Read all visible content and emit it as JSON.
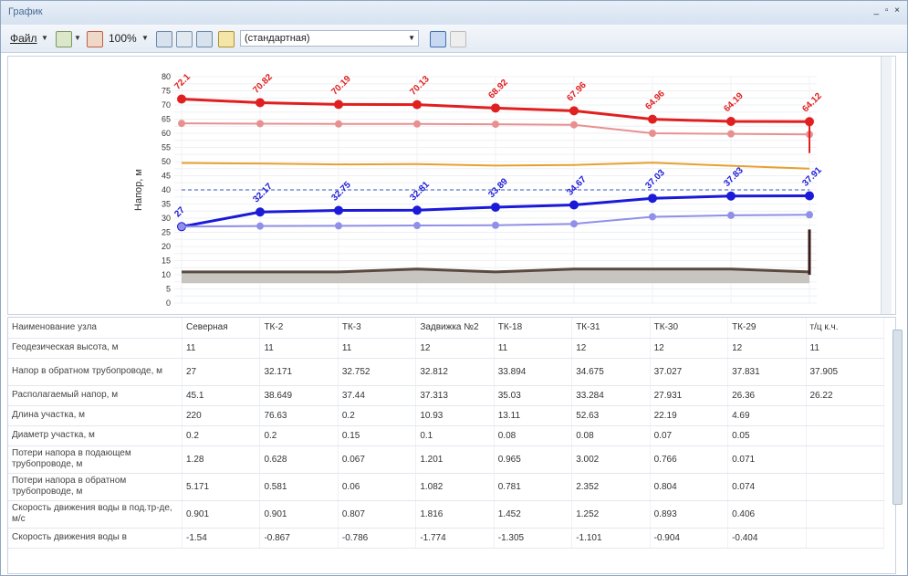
{
  "window": {
    "title": "График",
    "controls": "_ ▫ ×"
  },
  "toolbar": {
    "file_menu": "Файл",
    "zoom": "100%",
    "scheme": "(стандартная)"
  },
  "colors": {
    "red": "#e02020",
    "light_red": "#e89090",
    "blue": "#1a1ad8",
    "light_blue": "#9090e8",
    "orange": "#e8a030",
    "ground": "#5a4a40"
  },
  "chart_data": {
    "type": "line",
    "ylabel": "Напор, м",
    "ylim": [
      0,
      80
    ],
    "yticks": [
      0,
      5,
      10,
      15,
      20,
      25,
      30,
      35,
      40,
      45,
      50,
      55,
      60,
      65,
      70,
      75,
      80
    ],
    "categories": [
      "Северная",
      "ТК-2",
      "ТК-3",
      "Задвижка №2",
      "ТК-18",
      "ТК-31",
      "ТК-30",
      "ТК-29",
      "т/ц к.ч."
    ],
    "series": [
      {
        "name": "",
        "color": "#e02020",
        "values": [
          72.1,
          70.82,
          70.19,
          70.13,
          68.92,
          67.96,
          64.96,
          64.19,
          64.12
        ],
        "labels": [
          "72.1",
          "70.82",
          "70.19",
          "70.13",
          "68.92",
          "67.96",
          "64.96",
          "64.19",
          "64.12"
        ]
      },
      {
        "name": "",
        "color": "#e89090",
        "values": [
          63.5,
          63.4,
          63.3,
          63.3,
          63.2,
          63.0,
          60.0,
          59.8,
          59.6
        ]
      },
      {
        "name": "",
        "color": "#e8a030",
        "values": [
          49.5,
          49.3,
          49.0,
          49.1,
          48.6,
          48.8,
          49.6,
          48.5,
          47.5
        ]
      },
      {
        "name": "",
        "color": "#1a1ad8",
        "values": [
          27,
          32.17,
          32.75,
          32.81,
          33.89,
          34.67,
          37.03,
          37.83,
          37.91
        ],
        "labels": [
          "27",
          "32.17",
          "32.75",
          "32.81",
          "33.89",
          "34.67",
          "37.03",
          "37.83",
          "37.91"
        ]
      },
      {
        "name": "",
        "color": "#9090e8",
        "values": [
          27,
          27.2,
          27.3,
          27.4,
          27.5,
          28.0,
          30.5,
          31.0,
          31.2
        ]
      },
      {
        "name": "",
        "color": "#5a4a40",
        "values": [
          11,
          11,
          11,
          12,
          11,
          12,
          12,
          12,
          11
        ]
      }
    ],
    "reference_line": 40,
    "grid": true
  },
  "table": {
    "rows": [
      {
        "label": "Наименование узла",
        "cells": [
          "Северная",
          "ТК-2",
          "ТК-3",
          "Задвижка №2",
          "ТК-18",
          "ТК-31",
          "ТК-30",
          "ТК-29",
          "т/ц к.ч."
        ]
      },
      {
        "label": "Геодезическая высота, м",
        "cells": [
          "11",
          "11",
          "11",
          "12",
          "11",
          "12",
          "12",
          "12",
          "11"
        ]
      },
      {
        "label": "Напор в обратном трубопроводе, м",
        "cells": [
          "27",
          "32.171",
          "32.752",
          "32.812",
          "33.894",
          "34.675",
          "37.027",
          "37.831",
          "37.905"
        ]
      },
      {
        "label": "Располагаемый напор, м",
        "cells": [
          "45.1",
          "38.649",
          "37.44",
          "37.313",
          "35.03",
          "33.284",
          "27.931",
          "26.36",
          "26.22"
        ]
      },
      {
        "label": "Длина участка, м",
        "cells": [
          "220",
          "76.63",
          "0.2",
          "10.93",
          "13.11",
          "52.63",
          "22.19",
          "4.69",
          ""
        ]
      },
      {
        "label": "Диаметр участка, м",
        "cells": [
          "0.2",
          "0.2",
          "0.15",
          "0.1",
          "0.08",
          "0.08",
          "0.07",
          "0.05",
          ""
        ]
      },
      {
        "label": "Потери напора в подающем трубопроводе, м",
        "cells": [
          "1.28",
          "0.628",
          "0.067",
          "1.201",
          "0.965",
          "3.002",
          "0.766",
          "0.071",
          ""
        ]
      },
      {
        "label": "Потери напора в обратном трубопроводе, м",
        "cells": [
          "5.171",
          "0.581",
          "0.06",
          "1.082",
          "0.781",
          "2.352",
          "0.804",
          "0.074",
          ""
        ]
      },
      {
        "label": "Скорость движения воды в под.тр-де, м/с",
        "cells": [
          "0.901",
          "0.901",
          "0.807",
          "1.816",
          "1.452",
          "1.252",
          "0.893",
          "0.406",
          ""
        ]
      },
      {
        "label": "Скорость движения воды в",
        "cells": [
          "-1.54",
          "-0.867",
          "-0.786",
          "-1.774",
          "-1.305",
          "-1.101",
          "-0.904",
          "-0.404",
          ""
        ]
      }
    ]
  }
}
